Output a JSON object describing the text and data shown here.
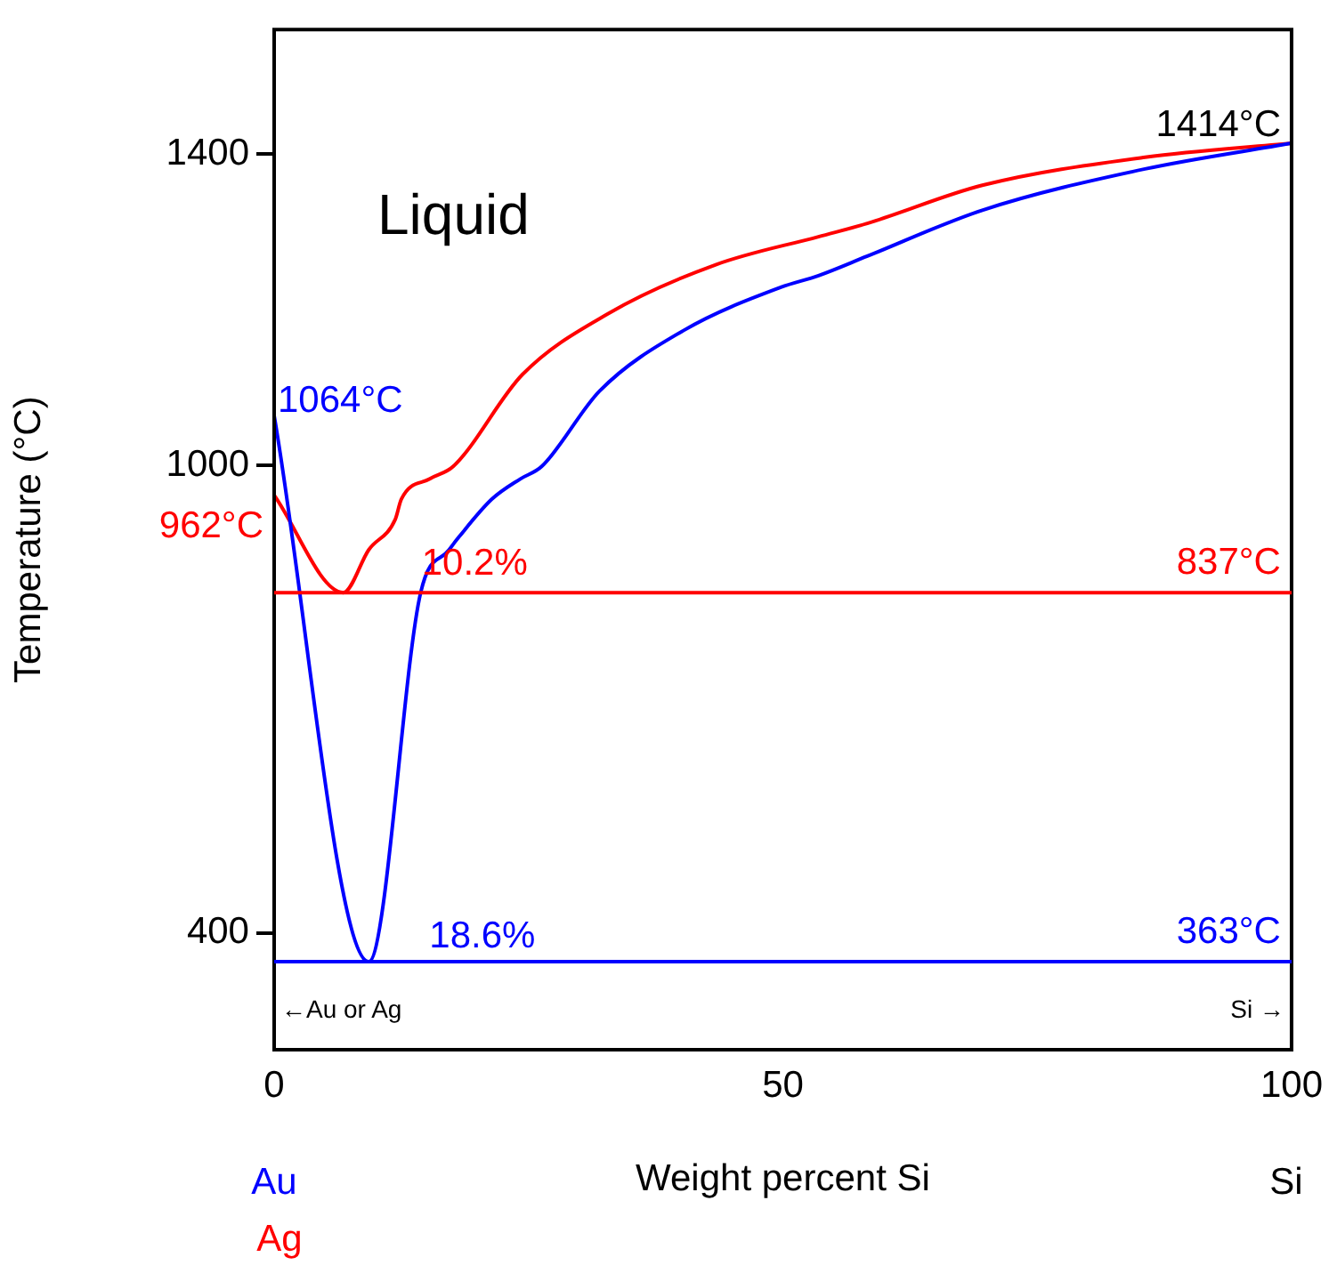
{
  "chart_data": {
    "type": "line",
    "xlabel": "Weight percent Si",
    "ylabel": "Temperature (°C)",
    "xlim": [
      0,
      100
    ],
    "ylim": [
      250,
      1560
    ],
    "xticks": [
      0,
      50,
      100
    ],
    "yticks": [
      400,
      1000,
      1400
    ],
    "grid": false,
    "legend": false,
    "marker": "none",
    "line_style": "solid",
    "series": [
      {
        "color": "#0000ff",
        "x": [
          0,
          9.3,
          14.4,
          17.2,
          18.2,
          21.4,
          24.2,
          26.3,
          32.0,
          40.3,
          49.8,
          53.5,
          58.3,
          69.6,
          85.6,
          100
        ],
        "values": [
          1064,
          363,
          837,
          892,
          909,
          957,
          983,
          999,
          1096,
          1174,
          1229,
          1244,
          1269,
          1328,
          1381,
          1414
        ]
      },
      {
        "color": "#ff0000",
        "x": [
          0,
          6.8,
          9.3,
          11.9,
          12.5,
          15.3,
          17.6,
          24.4,
          32.8,
          43.4,
          53.5,
          58.3,
          69.6,
          85.6,
          100
        ],
        "values": [
          962,
          837,
          892,
          931,
          957,
          983,
          999,
          1117,
          1195,
          1258,
          1294,
          1311,
          1360,
          1396,
          1414
        ]
      }
    ],
    "ref_lines": [
      {
        "axis": "y",
        "value": 837,
        "label": "837°C",
        "color": "#ff0000"
      },
      {
        "axis": "y",
        "value": 363,
        "label": "363°C",
        "color": "#0000ff"
      }
    ],
    "annotations": [
      "Liquid",
      {
        "text": "1064°C",
        "x": 0,
        "y": 1064
      },
      {
        "text": "962°C",
        "x": 0,
        "y": 962
      },
      {
        "text": "1414°C",
        "x": 100,
        "y": 1414
      },
      {
        "text": "10.2%",
        "x": 6.8,
        "y": 837
      },
      {
        "text": "18.6%",
        "x": 9.3,
        "y": 363
      },
      "←Au or Ag",
      "Si →",
      "Au",
      "Ag",
      "Si"
    ]
  }
}
